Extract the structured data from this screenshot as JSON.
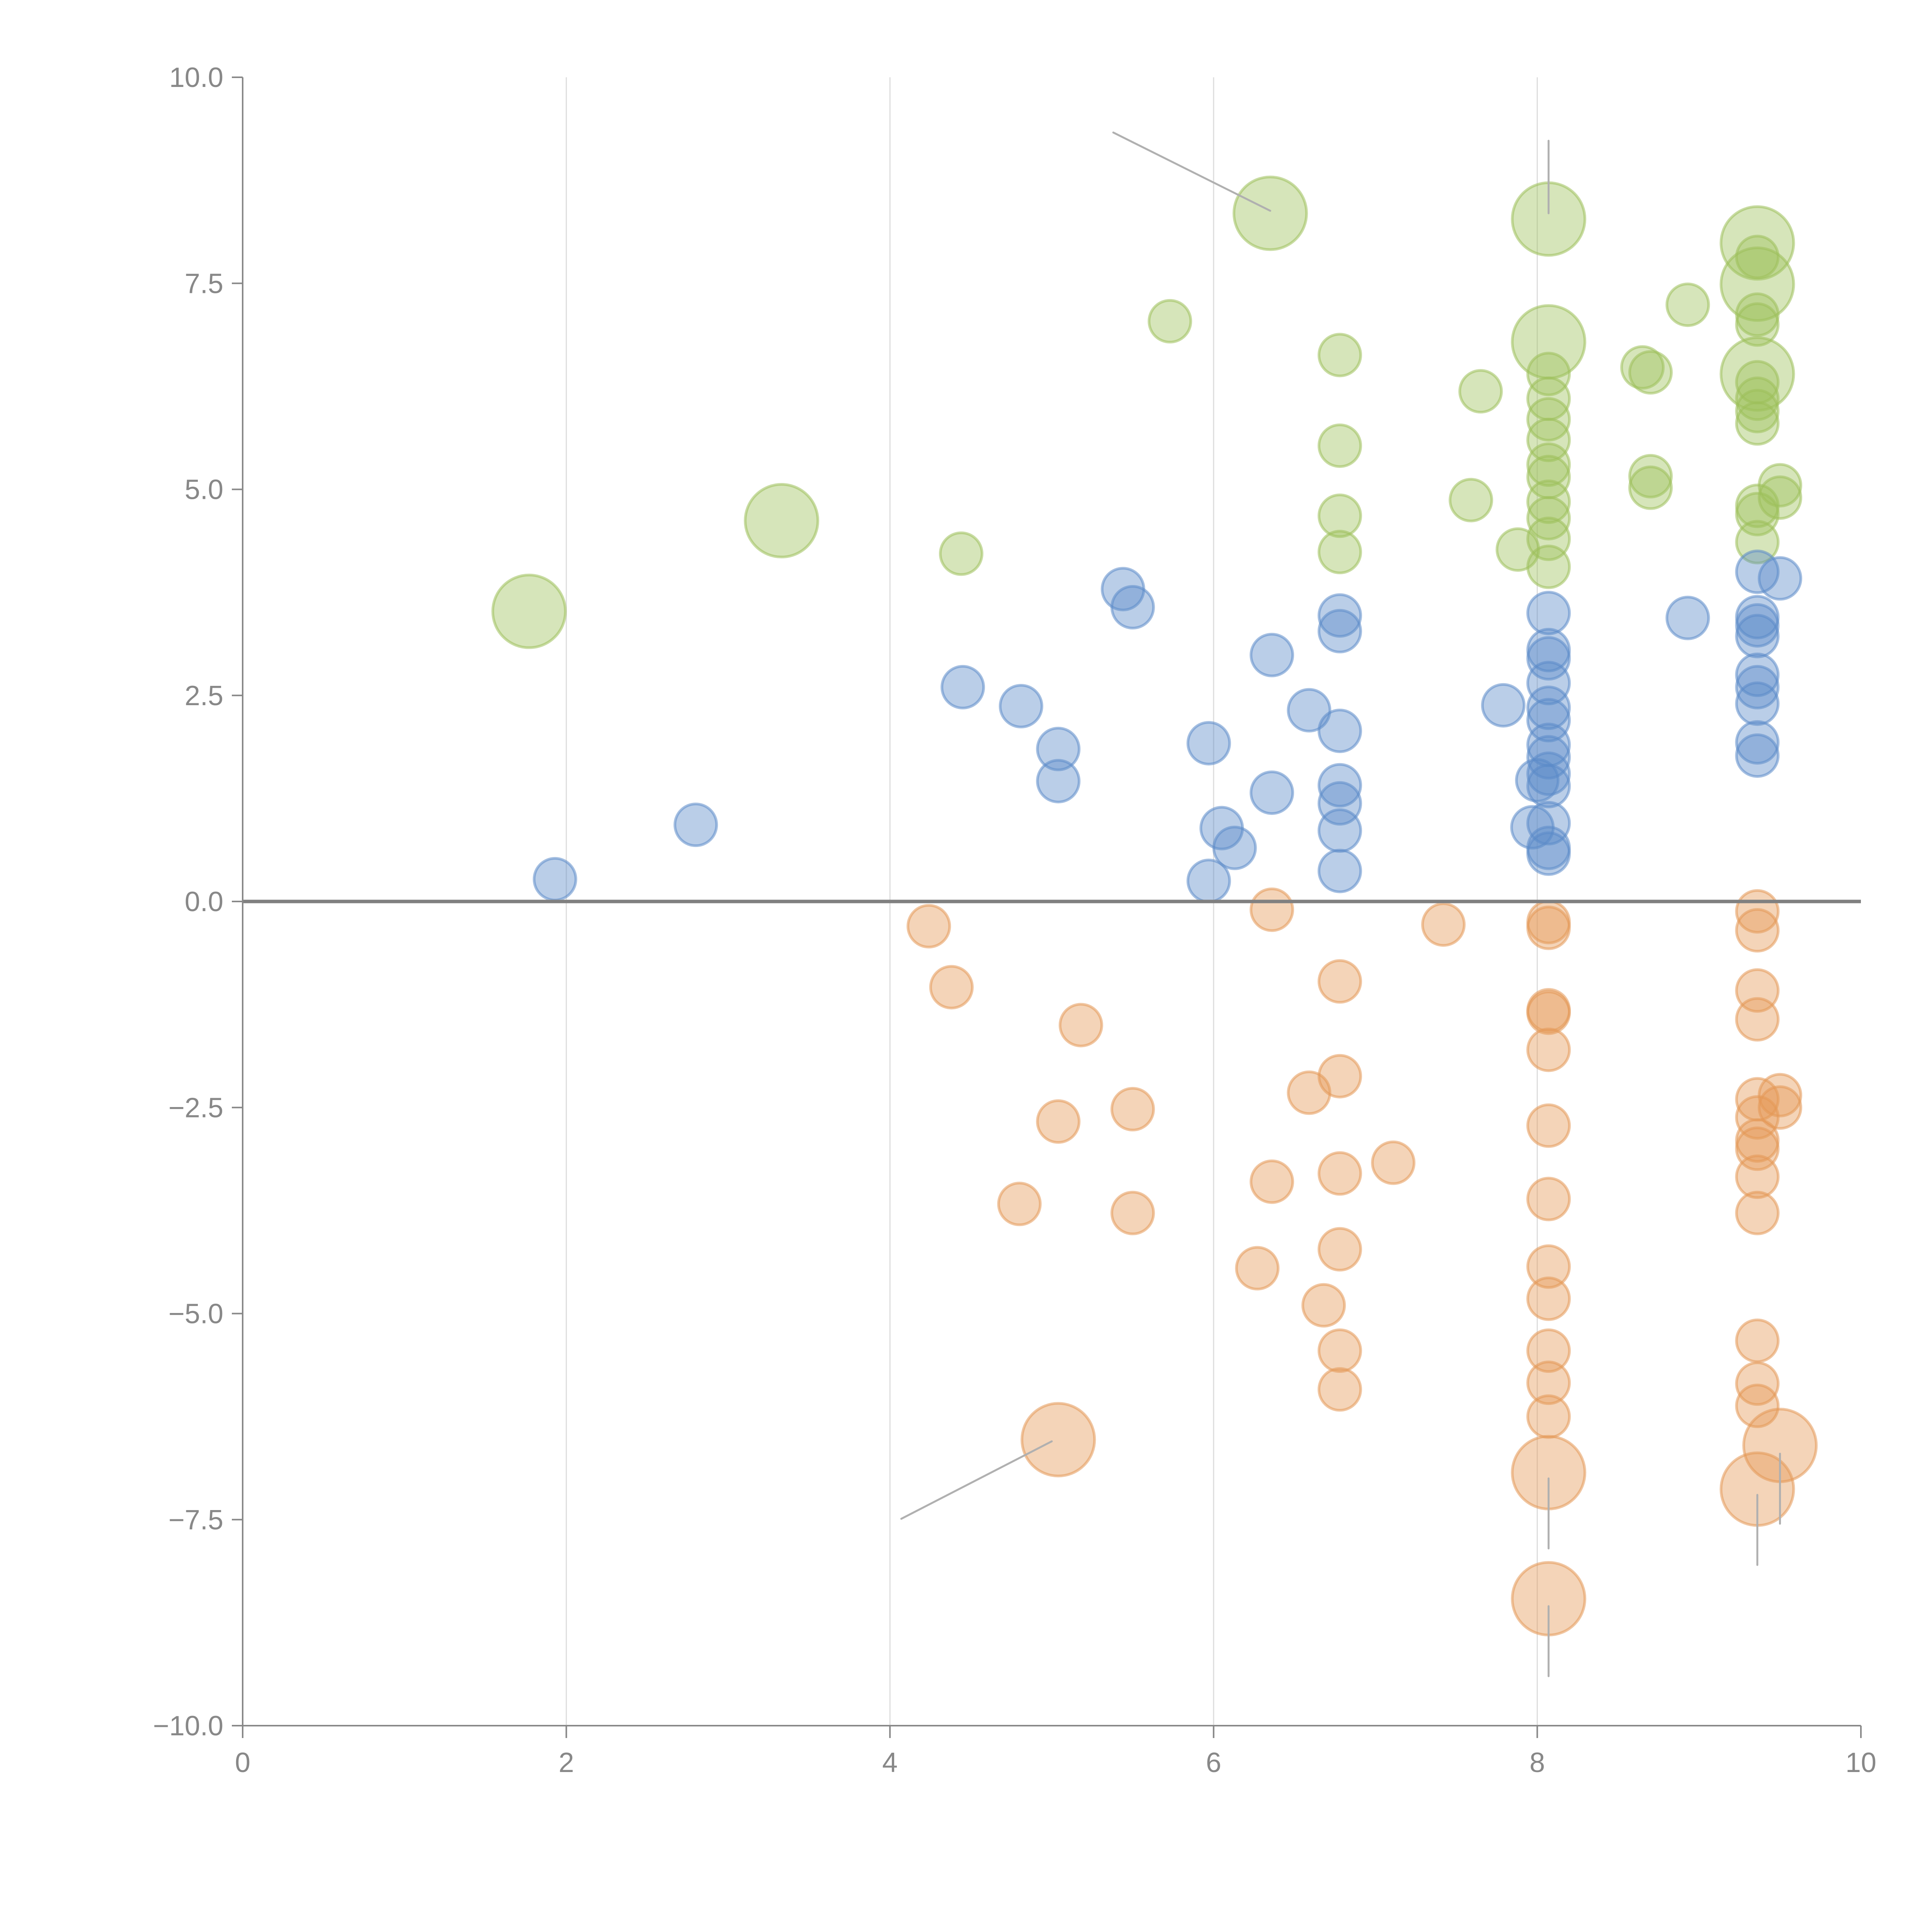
{
  "chart_data": {
    "type": "scatter",
    "variant": "bubble",
    "title": "",
    "xlabel": "",
    "ylabel": "",
    "xlim": [
      0,
      10
    ],
    "ylim": [
      -10,
      10
    ],
    "x_ticks": [
      "0",
      "2",
      "4",
      "6",
      "8",
      "10"
    ],
    "y_ticks": [
      "10.0",
      "7.5",
      "5.0",
      "2.5",
      "0.0",
      "−2.5",
      "−5.0",
      "−7.5",
      "−10.0"
    ],
    "x_tick_values": [
      0,
      2,
      4,
      6,
      8,
      10
    ],
    "y_tick_values": [
      10,
      7.5,
      5,
      2.5,
      0,
      -2.5,
      -5,
      -7.5,
      -10
    ],
    "grid": "vertical",
    "zero_line": true,
    "legend": "none",
    "series": [
      {
        "name": "green",
        "color": "#9dc05a",
        "points": [
          {
            "x": 1.77,
            "y": 3.52,
            "size": 2
          },
          {
            "x": 3.33,
            "y": 4.62,
            "size": 2
          },
          {
            "x": 4.44,
            "y": 4.22,
            "size": 1
          },
          {
            "x": 5.73,
            "y": 7.04,
            "size": 1
          },
          {
            "x": 6.35,
            "y": 8.35,
            "size": 2
          },
          {
            "x": 6.78,
            "y": 6.63,
            "size": 1
          },
          {
            "x": 6.78,
            "y": 5.53,
            "size": 1
          },
          {
            "x": 6.78,
            "y": 4.68,
            "size": 1
          },
          {
            "x": 6.78,
            "y": 4.24,
            "size": 1
          },
          {
            "x": 7.59,
            "y": 4.87,
            "size": 1
          },
          {
            "x": 7.65,
            "y": 6.19,
            "size": 1
          },
          {
            "x": 7.88,
            "y": 4.27,
            "size": 1
          },
          {
            "x": 8.07,
            "y": 8.28,
            "size": 2
          },
          {
            "x": 8.07,
            "y": 6.79,
            "size": 2
          },
          {
            "x": 8.07,
            "y": 6.4,
            "size": 1
          },
          {
            "x": 8.07,
            "y": 6.1,
            "size": 1
          },
          {
            "x": 8.07,
            "y": 5.85,
            "size": 1
          },
          {
            "x": 8.07,
            "y": 5.6,
            "size": 1
          },
          {
            "x": 8.07,
            "y": 5.3,
            "size": 1
          },
          {
            "x": 8.07,
            "y": 5.15,
            "size": 1
          },
          {
            "x": 8.07,
            "y": 4.85,
            "size": 1
          },
          {
            "x": 8.07,
            "y": 4.65,
            "size": 1
          },
          {
            "x": 8.07,
            "y": 4.4,
            "size": 1
          },
          {
            "x": 8.07,
            "y": 4.06,
            "size": 1
          },
          {
            "x": 8.65,
            "y": 6.48,
            "size": 1
          },
          {
            "x": 8.7,
            "y": 6.42,
            "size": 1
          },
          {
            "x": 8.7,
            "y": 5.16,
            "size": 1
          },
          {
            "x": 8.7,
            "y": 5.02,
            "size": 1
          },
          {
            "x": 8.93,
            "y": 7.24,
            "size": 1
          },
          {
            "x": 9.36,
            "y": 7.99,
            "size": 2
          },
          {
            "x": 9.36,
            "y": 7.82,
            "size": 1
          },
          {
            "x": 9.36,
            "y": 7.49,
            "size": 2
          },
          {
            "x": 9.36,
            "y": 7.12,
            "size": 1
          },
          {
            "x": 9.36,
            "y": 7.0,
            "size": 1
          },
          {
            "x": 9.36,
            "y": 6.4,
            "size": 2
          },
          {
            "x": 9.36,
            "y": 6.3,
            "size": 1
          },
          {
            "x": 9.36,
            "y": 6.1,
            "size": 1
          },
          {
            "x": 9.36,
            "y": 5.95,
            "size": 1
          },
          {
            "x": 9.36,
            "y": 5.8,
            "size": 1
          },
          {
            "x": 9.36,
            "y": 4.8,
            "size": 1
          },
          {
            "x": 9.36,
            "y": 4.7,
            "size": 1
          },
          {
            "x": 9.36,
            "y": 4.36,
            "size": 1
          },
          {
            "x": 9.5,
            "y": 5.05,
            "size": 1
          },
          {
            "x": 9.5,
            "y": 4.9,
            "size": 1
          }
        ]
      },
      {
        "name": "blue",
        "color": "#5b8ac8",
        "points": [
          {
            "x": 1.93,
            "y": 0.27,
            "size": 1
          },
          {
            "x": 2.8,
            "y": 0.93,
            "size": 1
          },
          {
            "x": 4.45,
            "y": 2.6,
            "size": 1
          },
          {
            "x": 4.81,
            "y": 2.37,
            "size": 1
          },
          {
            "x": 5.04,
            "y": 1.85,
            "size": 1
          },
          {
            "x": 5.04,
            "y": 1.46,
            "size": 1
          },
          {
            "x": 5.44,
            "y": 3.79,
            "size": 1
          },
          {
            "x": 5.5,
            "y": 3.57,
            "size": 1
          },
          {
            "x": 5.97,
            "y": 1.92,
            "size": 1
          },
          {
            "x": 5.97,
            "y": 0.25,
            "size": 1
          },
          {
            "x": 6.05,
            "y": 0.89,
            "size": 1
          },
          {
            "x": 6.13,
            "y": 0.65,
            "size": 1
          },
          {
            "x": 6.36,
            "y": 2.99,
            "size": 1
          },
          {
            "x": 6.36,
            "y": 1.32,
            "size": 1
          },
          {
            "x": 6.59,
            "y": 2.32,
            "size": 1
          },
          {
            "x": 6.78,
            "y": 3.47,
            "size": 1
          },
          {
            "x": 6.78,
            "y": 3.28,
            "size": 1
          },
          {
            "x": 6.78,
            "y": 2.07,
            "size": 1
          },
          {
            "x": 6.78,
            "y": 1.41,
            "size": 1
          },
          {
            "x": 6.78,
            "y": 1.19,
            "size": 1
          },
          {
            "x": 6.78,
            "y": 0.86,
            "size": 1
          },
          {
            "x": 6.78,
            "y": 0.37,
            "size": 1
          },
          {
            "x": 7.79,
            "y": 2.38,
            "size": 1
          },
          {
            "x": 7.97,
            "y": 0.9,
            "size": 1
          },
          {
            "x": 8.0,
            "y": 1.47,
            "size": 1
          },
          {
            "x": 8.07,
            "y": 3.5,
            "size": 1
          },
          {
            "x": 8.07,
            "y": 3.05,
            "size": 1
          },
          {
            "x": 8.07,
            "y": 2.95,
            "size": 1
          },
          {
            "x": 8.07,
            "y": 2.65,
            "size": 1
          },
          {
            "x": 8.07,
            "y": 2.35,
            "size": 1
          },
          {
            "x": 8.07,
            "y": 2.2,
            "size": 1
          },
          {
            "x": 8.07,
            "y": 1.9,
            "size": 1
          },
          {
            "x": 8.07,
            "y": 1.75,
            "size": 1
          },
          {
            "x": 8.07,
            "y": 1.55,
            "size": 1
          },
          {
            "x": 8.07,
            "y": 1.4,
            "size": 1
          },
          {
            "x": 8.07,
            "y": 0.95,
            "size": 1
          },
          {
            "x": 8.07,
            "y": 0.65,
            "size": 1
          },
          {
            "x": 8.07,
            "y": 0.58,
            "size": 1
          },
          {
            "x": 8.93,
            "y": 3.44,
            "size": 1
          },
          {
            "x": 9.36,
            "y": 4.0,
            "size": 1
          },
          {
            "x": 9.36,
            "y": 3.45,
            "size": 1
          },
          {
            "x": 9.36,
            "y": 3.35,
            "size": 1
          },
          {
            "x": 9.36,
            "y": 3.22,
            "size": 1
          },
          {
            "x": 9.36,
            "y": 2.75,
            "size": 1
          },
          {
            "x": 9.36,
            "y": 2.6,
            "size": 1
          },
          {
            "x": 9.36,
            "y": 2.4,
            "size": 1
          },
          {
            "x": 9.36,
            "y": 1.93,
            "size": 1
          },
          {
            "x": 9.36,
            "y": 1.77,
            "size": 1
          },
          {
            "x": 9.5,
            "y": 3.92,
            "size": 1
          }
        ]
      },
      {
        "name": "orange",
        "color": "#e49855",
        "points": [
          {
            "x": 4.24,
            "y": -0.3,
            "size": 1
          },
          {
            "x": 4.38,
            "y": -1.04,
            "size": 1
          },
          {
            "x": 4.8,
            "y": -3.67,
            "size": 1
          },
          {
            "x": 5.04,
            "y": -2.67,
            "size": 1
          },
          {
            "x": 5.04,
            "y": -6.53,
            "size": 2
          },
          {
            "x": 5.18,
            "y": -1.5,
            "size": 1
          },
          {
            "x": 5.5,
            "y": -2.52,
            "size": 1
          },
          {
            "x": 5.5,
            "y": -3.78,
            "size": 1
          },
          {
            "x": 6.27,
            "y": -4.45,
            "size": 1
          },
          {
            "x": 6.36,
            "y": -0.1,
            "size": 1
          },
          {
            "x": 6.36,
            "y": -3.4,
            "size": 1
          },
          {
            "x": 6.59,
            "y": -2.32,
            "size": 1
          },
          {
            "x": 6.68,
            "y": -4.9,
            "size": 1
          },
          {
            "x": 6.78,
            "y": -0.97,
            "size": 1
          },
          {
            "x": 6.78,
            "y": -2.12,
            "size": 1
          },
          {
            "x": 6.78,
            "y": -3.3,
            "size": 1
          },
          {
            "x": 6.78,
            "y": -4.22,
            "size": 1
          },
          {
            "x": 6.78,
            "y": -5.45,
            "size": 1
          },
          {
            "x": 6.78,
            "y": -5.92,
            "size": 1
          },
          {
            "x": 7.11,
            "y": -3.17,
            "size": 1
          },
          {
            "x": 7.42,
            "y": -0.28,
            "size": 1
          },
          {
            "x": 8.07,
            "y": -0.25,
            "size": 1
          },
          {
            "x": 8.07,
            "y": -0.32,
            "size": 1
          },
          {
            "x": 8.07,
            "y": -1.32,
            "size": 1
          },
          {
            "x": 8.07,
            "y": -1.35,
            "size": 1
          },
          {
            "x": 8.07,
            "y": -1.8,
            "size": 1
          },
          {
            "x": 8.07,
            "y": -2.72,
            "size": 1
          },
          {
            "x": 8.07,
            "y": -3.61,
            "size": 1
          },
          {
            "x": 8.07,
            "y": -4.43,
            "size": 1
          },
          {
            "x": 8.07,
            "y": -4.82,
            "size": 1
          },
          {
            "x": 8.07,
            "y": -5.45,
            "size": 1
          },
          {
            "x": 8.07,
            "y": -5.84,
            "size": 1
          },
          {
            "x": 8.07,
            "y": -6.25,
            "size": 1
          },
          {
            "x": 8.07,
            "y": -6.93,
            "size": 2
          },
          {
            "x": 8.07,
            "y": -8.46,
            "size": 2
          },
          {
            "x": 9.36,
            "y": -0.12,
            "size": 1
          },
          {
            "x": 9.36,
            "y": -0.35,
            "size": 1
          },
          {
            "x": 9.36,
            "y": -1.08,
            "size": 1
          },
          {
            "x": 9.36,
            "y": -1.43,
            "size": 1
          },
          {
            "x": 9.36,
            "y": -2.4,
            "size": 1
          },
          {
            "x": 9.36,
            "y": -2.62,
            "size": 1
          },
          {
            "x": 9.36,
            "y": -2.9,
            "size": 1
          },
          {
            "x": 9.36,
            "y": -3.0,
            "size": 1
          },
          {
            "x": 9.36,
            "y": -3.34,
            "size": 1
          },
          {
            "x": 9.36,
            "y": -3.78,
            "size": 1
          },
          {
            "x": 9.36,
            "y": -5.33,
            "size": 1
          },
          {
            "x": 9.36,
            "y": -5.85,
            "size": 1
          },
          {
            "x": 9.36,
            "y": -6.12,
            "size": 1
          },
          {
            "x": 9.36,
            "y": -7.13,
            "size": 2
          },
          {
            "x": 9.5,
            "y": -2.35,
            "size": 1
          },
          {
            "x": 9.5,
            "y": -2.5,
            "size": 1
          },
          {
            "x": 9.5,
            "y": -6.6,
            "size": 2
          }
        ]
      }
    ],
    "annotation_leaders": [
      {
        "from": [
          5.38,
          9.33
        ],
        "to": [
          6.35,
          8.38
        ]
      },
      {
        "from": [
          4.07,
          -7.49
        ],
        "to": [
          5.0,
          -6.55
        ]
      },
      {
        "from": [
          8.07,
          9.23
        ],
        "to": [
          8.07,
          8.35
        ]
      },
      {
        "from": [
          8.07,
          -7.0
        ],
        "to": [
          8.07,
          -7.85
        ]
      },
      {
        "from": [
          8.07,
          -8.55
        ],
        "to": [
          8.07,
          -9.4
        ]
      },
      {
        "from": [
          9.36,
          -7.2
        ],
        "to": [
          9.36,
          -8.05
        ]
      },
      {
        "from": [
          9.5,
          -6.7
        ],
        "to": [
          9.5,
          -7.55
        ]
      }
    ]
  }
}
